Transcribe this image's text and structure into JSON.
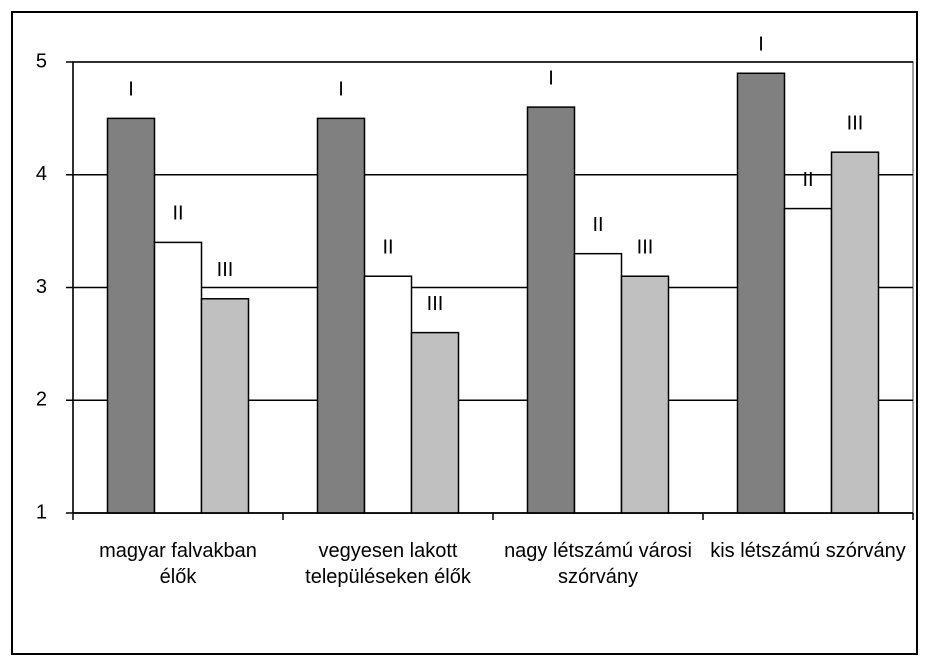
{
  "chart_data": {
    "type": "bar",
    "categories": [
      "magyar falvakban élők",
      "vegyesen lakott településeken élők",
      "nagy létszámú városi szórvány",
      "kis létszámú szórvány"
    ],
    "series": [
      {
        "name": "I",
        "color": "#808080",
        "values": [
          4.5,
          4.5,
          4.6,
          4.9
        ]
      },
      {
        "name": "II",
        "color": "#ffffff",
        "values": [
          3.4,
          3.1,
          3.3,
          3.7
        ]
      },
      {
        "name": "III",
        "color": "#c0c0c0",
        "values": [
          2.9,
          2.6,
          3.1,
          4.2
        ]
      }
    ],
    "ylim": [
      1,
      5
    ],
    "yticks": [
      1,
      2,
      3,
      4,
      5
    ],
    "grid": true
  }
}
